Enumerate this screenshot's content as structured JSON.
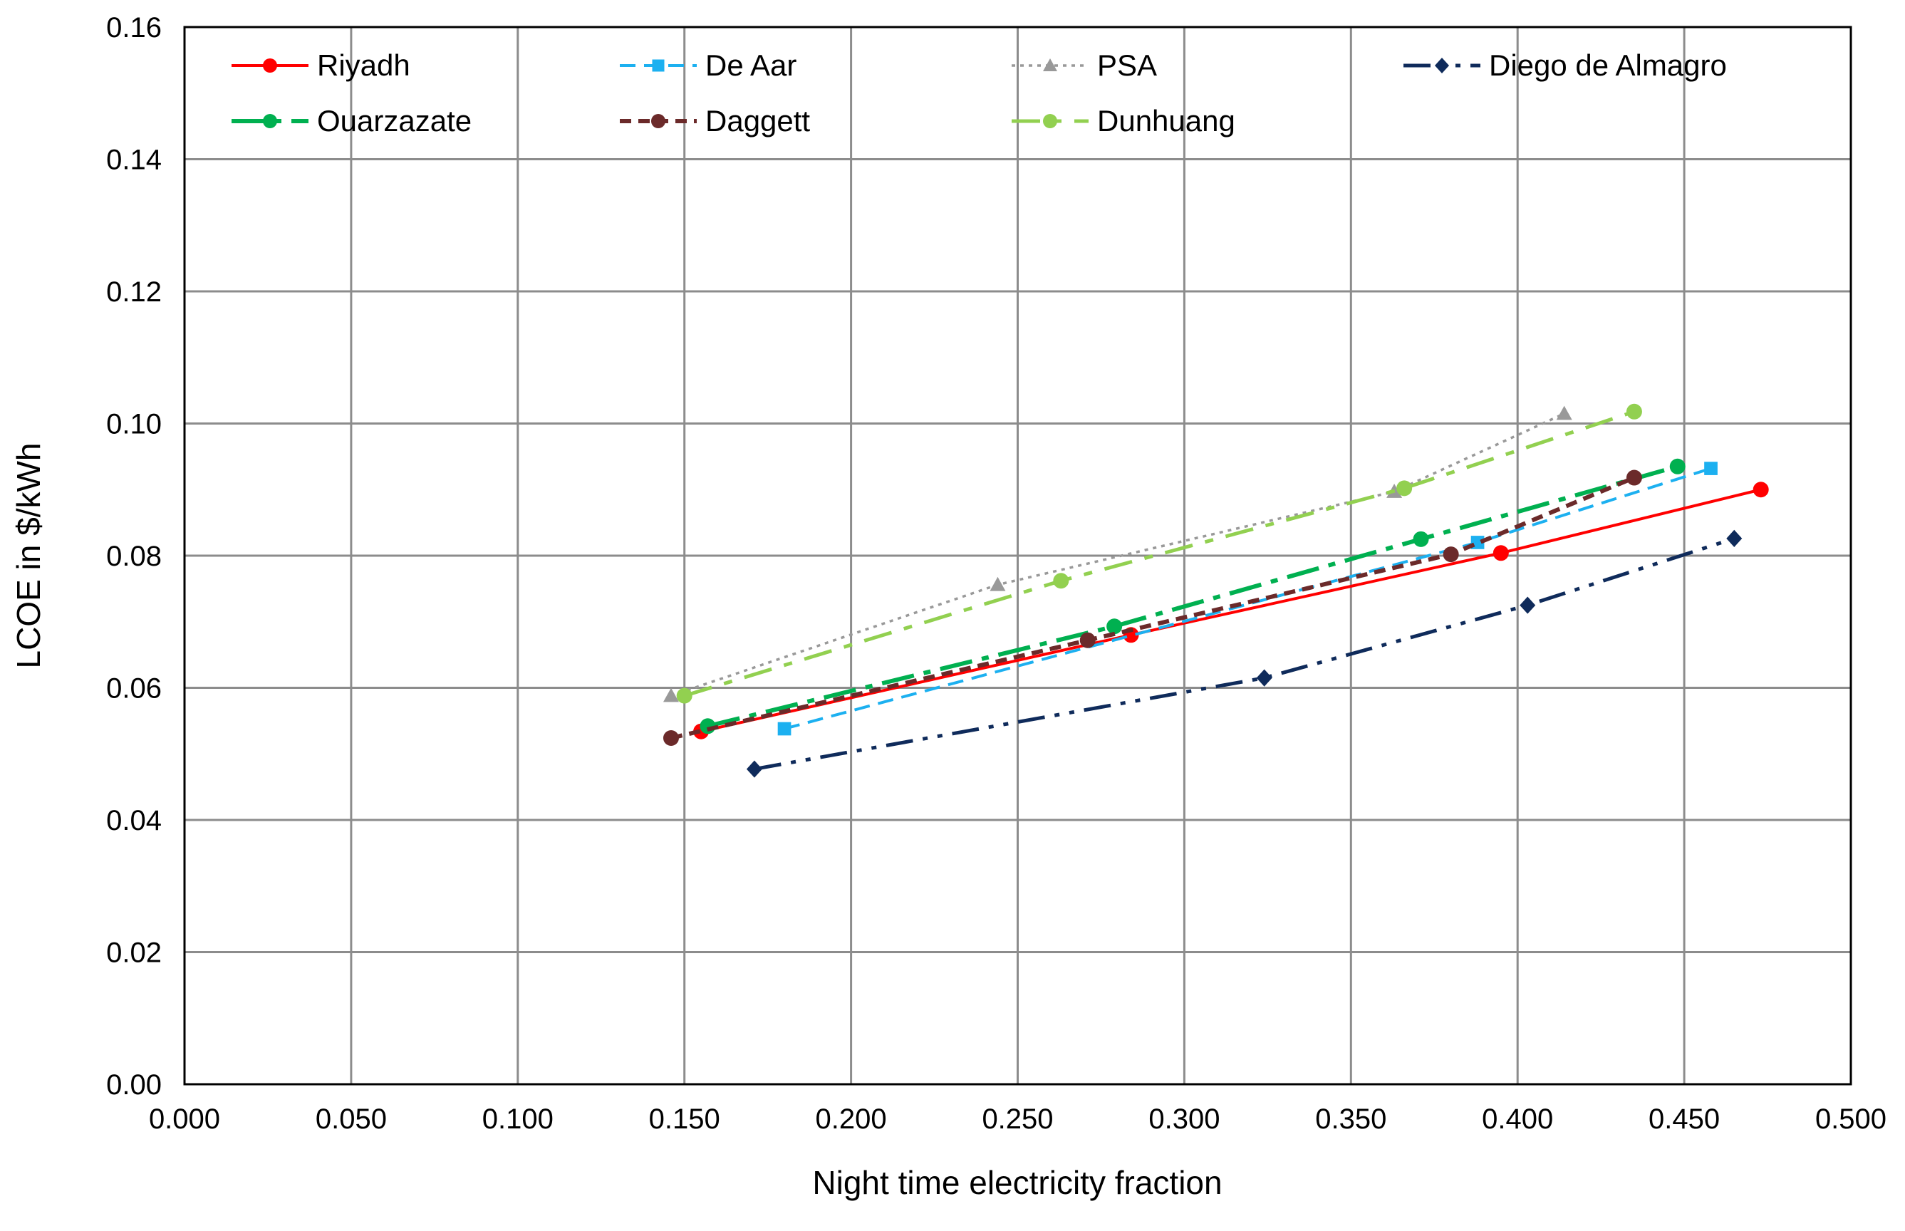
{
  "chart_data": {
    "type": "line",
    "title": "",
    "xlabel": "Night time electricity fraction",
    "ylabel": "LCOE in $/kWh",
    "xlim": [
      0.0,
      0.5
    ],
    "ylim": [
      0.0,
      0.16
    ],
    "x_ticks": [
      "0.000",
      "0.050",
      "0.100",
      "0.150",
      "0.200",
      "0.250",
      "0.300",
      "0.350",
      "0.400",
      "0.450",
      "0.500"
    ],
    "y_ticks": [
      "0.00",
      "0.02",
      "0.04",
      "0.06",
      "0.08",
      "0.10",
      "0.12",
      "0.14",
      "0.16"
    ],
    "grid": true,
    "legend_position": "top, inside plot, 4 columns",
    "series": [
      {
        "name": "Riyadh",
        "color": "#ff0000",
        "dash": "solid",
        "marker": "circle",
        "x": [
          0.155,
          0.284,
          0.395,
          0.473
        ],
        "y": [
          0.0534,
          0.068,
          0.0804,
          0.09
        ]
      },
      {
        "name": "De Aar",
        "color": "#1cb0f0",
        "dash": "dash",
        "marker": "square",
        "x": [
          0.18,
          0.388,
          0.458
        ],
        "y": [
          0.0538,
          0.082,
          0.0932
        ]
      },
      {
        "name": "PSA",
        "color": "#999999",
        "dash": "dot",
        "marker": "triangle",
        "x": [
          0.146,
          0.244,
          0.363,
          0.414
        ],
        "y": [
          0.0588,
          0.0756,
          0.0897,
          0.1015
        ]
      },
      {
        "name": "Diego de Almagro",
        "color": "#0f2b5b",
        "dash": "dashdotdot",
        "marker": "diamond",
        "x": [
          0.171,
          0.324,
          0.403,
          0.465
        ],
        "y": [
          0.0477,
          0.0615,
          0.0725,
          0.0826
        ]
      },
      {
        "name": "Ouarzazate",
        "color": "#00b050",
        "dash": "dashdot",
        "marker": "circle",
        "x": [
          0.157,
          0.279,
          0.371,
          0.448
        ],
        "y": [
          0.0542,
          0.0693,
          0.0825,
          0.0935
        ]
      },
      {
        "name": "Daggett",
        "color": "#6b2a2a",
        "dash": "shortdash",
        "marker": "circle",
        "x": [
          0.146,
          0.271,
          0.38,
          0.435
        ],
        "y": [
          0.0524,
          0.0672,
          0.0802,
          0.0918
        ]
      },
      {
        "name": "Dunhuang",
        "color": "#92d050",
        "dash": "longdashdot",
        "marker": "circle",
        "x": [
          0.15,
          0.263,
          0.366,
          0.435
        ],
        "y": [
          0.0588,
          0.0762,
          0.0902,
          0.1018
        ]
      }
    ]
  }
}
